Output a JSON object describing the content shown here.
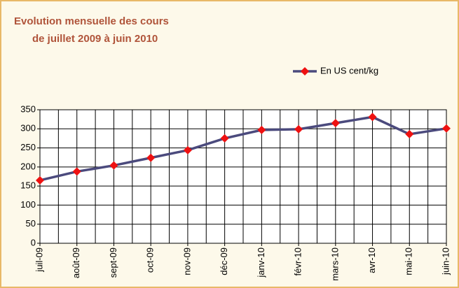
{
  "chart_data": {
    "type": "line",
    "title": [
      "Evolution mensuelle des cours",
      "de juillet 2009 à juin 2010"
    ],
    "categories": [
      "juil-09",
      "août-09",
      "sept-09",
      "oct-09",
      "nov-09",
      "déc-09",
      "janv-10",
      "févr-10",
      "mars-10",
      "avr-10",
      "mai-10",
      "juin-10"
    ],
    "series": [
      {
        "name": "En US cent/kg",
        "color": "#4b4a7d",
        "marker_color": "#ee1111",
        "values": [
          165,
          188,
          204,
          224,
          244,
          275,
          297,
          299,
          315,
          331,
          286,
          301
        ]
      }
    ],
    "ylim": [
      0,
      350
    ],
    "yticks": [
      0,
      50,
      100,
      150,
      200,
      250,
      300,
      350
    ],
    "grid": true,
    "legend": "top-right"
  }
}
